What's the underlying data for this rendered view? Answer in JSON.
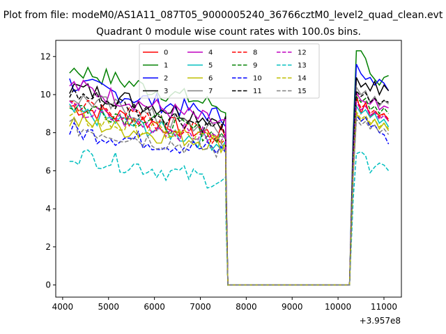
{
  "chart_data": {
    "type": "line",
    "suptitle": "Plot from file: modeM0/AS1A11_087T05_9000005240_36766cztM0_level2_quad_clean.evt",
    "title": "Quadrant 0 module wise count rates with 100.0s bins.",
    "xlabel": "",
    "ylabel": "",
    "x_offset_label": "+3.957e8",
    "xlim": [
      3850,
      11380
    ],
    "ylim": [
      -0.64,
      12.85
    ],
    "xticks": [
      4000,
      5000,
      6000,
      7000,
      8000,
      9000,
      10000,
      11000
    ],
    "xtick_labels": [
      "4000",
      "5000",
      "6000",
      "7000",
      "8000",
      "9000",
      "10000",
      "11000"
    ],
    "yticks": [
      0,
      2,
      4,
      6,
      8,
      10,
      12
    ],
    "ytick_labels": [
      "0",
      "2",
      "4",
      "6",
      "8",
      "10",
      "12"
    ],
    "legend_position": "upper-center",
    "legend_columns": 4,
    "gap": {
      "start": 7600,
      "end": 10250
    },
    "x_first_segment": {
      "start": 4150,
      "end": 7500,
      "step": 100
    },
    "x_second_segment": {
      "start": 10400,
      "end": 11100,
      "step": 100
    },
    "series": [
      {
        "name": "0",
        "color": "#ff0000",
        "style": "solid",
        "seg1_start": 9.4,
        "seg1_end": 7.8,
        "seg2": [
          10.0,
          9.0,
          9.6,
          8.8,
          9.1,
          8.9,
          9.0,
          8.6
        ]
      },
      {
        "name": "1",
        "color": "#008000",
        "style": "solid",
        "seg1_start": 11.4,
        "seg1_end": 9.3,
        "seg2": [
          12.3,
          12.3,
          11.9,
          11.1,
          10.8,
          10.5,
          10.9,
          11.0
        ]
      },
      {
        "name": "2",
        "color": "#0000ff",
        "style": "solid",
        "seg1_start": 10.6,
        "seg1_end": 8.8,
        "seg2": [
          11.6,
          11.1,
          10.8,
          10.9,
          10.5,
          10.8,
          10.6,
          10.2
        ]
      },
      {
        "name": "3",
        "color": "#000000",
        "style": "solid",
        "seg1_start": 10.4,
        "seg1_end": 8.6,
        "seg2": [
          10.9,
          10.4,
          10.6,
          10.2,
          10.7,
          10.0,
          10.5,
          10.2
        ]
      },
      {
        "name": "4",
        "color": "#bf00bf",
        "style": "solid",
        "seg1_start": 10.5,
        "seg1_end": 8.4,
        "seg2": [
          10.1,
          9.7,
          9.6,
          9.5,
          9.8,
          9.2,
          9.4,
          9.3
        ]
      },
      {
        "name": "5",
        "color": "#00bfbf",
        "style": "solid",
        "seg1_start": 9.1,
        "seg1_end": 7.4,
        "seg2": [
          9.4,
          9.0,
          9.2,
          8.8,
          9.0,
          8.5,
          8.7,
          8.3
        ]
      },
      {
        "name": "6",
        "color": "#bfbf00",
        "style": "solid",
        "seg1_start": 8.6,
        "seg1_end": 7.4,
        "seg2": [
          9.0,
          8.6,
          8.8,
          8.4,
          8.7,
          8.2,
          8.5,
          8.1
        ]
      },
      {
        "name": "7",
        "color": "#808080",
        "style": "solid",
        "seg1_start": 9.9,
        "seg1_end": 7.9,
        "seg2": [
          10.4,
          10.0,
          10.2,
          9.6,
          9.9,
          9.4,
          9.7,
          9.5
        ]
      },
      {
        "name": "8",
        "color": "#ff0000",
        "style": "dashed",
        "seg1_start": 9.6,
        "seg1_end": 7.7,
        "seg2": [
          9.8,
          9.3,
          9.5,
          9.0,
          9.2,
          8.8,
          9.0,
          8.7
        ]
      },
      {
        "name": "9",
        "color": "#008000",
        "style": "dashed",
        "seg1_start": 9.5,
        "seg1_end": 7.8,
        "seg2": [
          9.9,
          9.6,
          9.8,
          9.2,
          9.4,
          9.0,
          9.3,
          9.0
        ]
      },
      {
        "name": "10",
        "color": "#0000ff",
        "style": "dashed",
        "seg1_start": 8.1,
        "seg1_end": 7.0,
        "seg2": [
          8.9,
          8.6,
          8.8,
          8.3,
          8.4,
          8.0,
          7.9,
          7.4
        ]
      },
      {
        "name": "11",
        "color": "#000000",
        "style": "dashed",
        "seg1_start": 10.1,
        "seg1_end": 8.2,
        "seg2": [
          10.2,
          9.9,
          10.1,
          9.6,
          9.8,
          9.5,
          9.7,
          9.6
        ]
      },
      {
        "name": "12",
        "color": "#bf00bf",
        "style": "dashed",
        "seg1_start": 9.2,
        "seg1_end": 7.6,
        "seg2": [
          9.6,
          9.2,
          9.4,
          8.9,
          9.1,
          8.7,
          8.9,
          8.6
        ]
      },
      {
        "name": "13",
        "color": "#00bfbf",
        "style": "dashed",
        "seg1_start": 6.9,
        "seg1_end": 5.4,
        "seg2": [
          6.9,
          7.0,
          6.8,
          5.9,
          6.2,
          6.4,
          6.3,
          6.0
        ]
      },
      {
        "name": "14",
        "color": "#bfbf00",
        "style": "dashed",
        "seg1_start": 8.8,
        "seg1_end": 7.5,
        "seg2": [
          9.1,
          8.7,
          8.9,
          8.5,
          8.7,
          8.3,
          8.5,
          8.2
        ]
      },
      {
        "name": "15",
        "color": "#808080",
        "style": "dashed",
        "seg1_start": 8.3,
        "seg1_end": 7.0,
        "seg2": [
          8.7,
          8.4,
          8.6,
          8.2,
          8.4,
          8.0,
          8.2,
          7.9
        ]
      }
    ]
  }
}
